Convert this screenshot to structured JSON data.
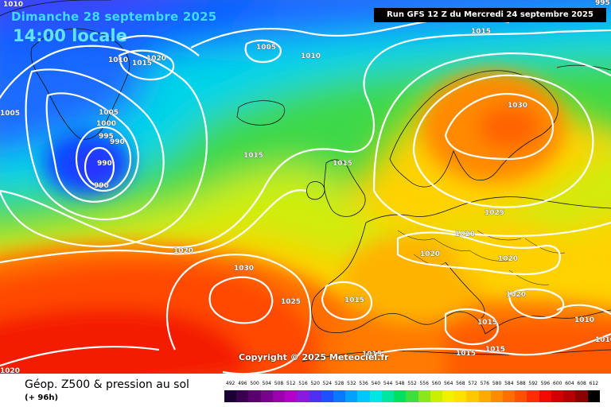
{
  "header": {
    "date_label": "Dimanche 28 septembre 2025",
    "time_label": "14:00 locale",
    "run_label": "Run GFS 12 Z du Mercredi 24 septembre 2025"
  },
  "copyright": "Copyright © 2025 Meteociel.fr",
  "legend": {
    "title": "Géop. Z500 & pression au sol",
    "subtitle": "(+ 96h)",
    "scale": [
      {
        "label": "492",
        "color": "#1a0033"
      },
      {
        "label": "496",
        "color": "#3a0050"
      },
      {
        "label": "500",
        "color": "#5a006e"
      },
      {
        "label": "504",
        "color": "#7a008e"
      },
      {
        "label": "508",
        "color": "#9a00ae"
      },
      {
        "label": "512",
        "color": "#b400c8"
      },
      {
        "label": "516",
        "color": "#8a1ae0"
      },
      {
        "label": "520",
        "color": "#5030f0"
      },
      {
        "label": "524",
        "color": "#1e50ff"
      },
      {
        "label": "528",
        "color": "#0a78ff"
      },
      {
        "label": "532",
        "color": "#00a0ff"
      },
      {
        "label": "536",
        "color": "#00c8ff"
      },
      {
        "label": "540",
        "color": "#00e6e6"
      },
      {
        "label": "544",
        "color": "#00e6a0"
      },
      {
        "label": "548",
        "color": "#00e060"
      },
      {
        "label": "552",
        "color": "#3ce03c"
      },
      {
        "label": "556",
        "color": "#8ce61e"
      },
      {
        "label": "560",
        "color": "#c8f000"
      },
      {
        "label": "564",
        "color": "#f0f000"
      },
      {
        "label": "568",
        "color": "#ffe100"
      },
      {
        "label": "572",
        "color": "#ffc800"
      },
      {
        "label": "576",
        "color": "#ffaa00"
      },
      {
        "label": "580",
        "color": "#ff8c00"
      },
      {
        "label": "584",
        "color": "#ff6e00"
      },
      {
        "label": "588",
        "color": "#ff5000"
      },
      {
        "label": "592",
        "color": "#ff2d00"
      },
      {
        "label": "596",
        "color": "#f00a00"
      },
      {
        "label": "600",
        "color": "#d20000"
      },
      {
        "label": "604",
        "color": "#b40000"
      },
      {
        "label": "608",
        "color": "#8c0000"
      },
      {
        "label": "612",
        "color": "#000000"
      }
    ]
  },
  "isobar_labels": [
    {
      "text": "1010"
    },
    {
      "text": "1005"
    },
    {
      "text": "1010"
    },
    {
      "text": "1015"
    },
    {
      "text": "1020"
    },
    {
      "text": "1005"
    },
    {
      "text": "1010"
    },
    {
      "text": "1005"
    },
    {
      "text": "1000"
    },
    {
      "text": "995"
    },
    {
      "text": "990"
    },
    {
      "text": "990"
    },
    {
      "text": "990"
    },
    {
      "text": "1015"
    },
    {
      "text": "1015"
    },
    {
      "text": "1030"
    },
    {
      "text": "1025"
    },
    {
      "text": "1020"
    },
    {
      "text": "1020"
    },
    {
      "text": "1020"
    },
    {
      "text": "1020"
    },
    {
      "text": "1030"
    },
    {
      "text": "1025"
    },
    {
      "text": "1015"
    },
    {
      "text": "1020"
    },
    {
      "text": "1015"
    },
    {
      "text": "1015"
    },
    {
      "text": "1015"
    },
    {
      "text": "1015"
    },
    {
      "text": "1010"
    },
    {
      "text": "1010"
    },
    {
      "text": "1020"
    },
    {
      "text": "995"
    },
    {
      "text": "1015"
    }
  ],
  "colors": {
    "isobar": "#ffffff",
    "coastline": "#111111"
  }
}
